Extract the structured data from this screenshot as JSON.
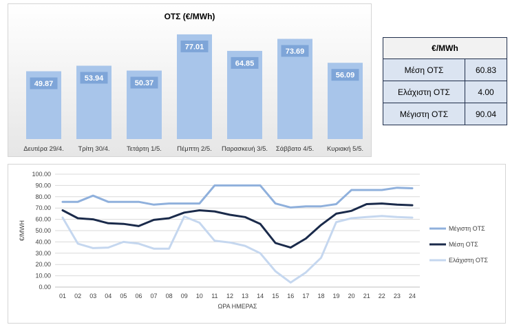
{
  "chart_data": [
    {
      "type": "bar",
      "title": "ΟΤΣ (€/MWh)",
      "categories": [
        "Δευτέρα 29/4.",
        "Τρίτη 30/4.",
        "Τετάρτη 1/5.",
        "Πέμπτη 2/5.",
        "Παρασκευή 3/5.",
        "Σάββατο 4/5.",
        "Κυριακή 5/5."
      ],
      "values": [
        49.87,
        53.94,
        50.37,
        77.01,
        64.85,
        73.69,
        56.09
      ],
      "data_labels": [
        "49.87",
        "53.94",
        "50.37",
        "77.01",
        "64.85",
        "73.69",
        "56.09"
      ],
      "bar_color": "#a8c5ea",
      "ylim": [
        0,
        80
      ]
    },
    {
      "type": "line",
      "title": "",
      "xlabel": "ΩΡΑ ΗΜΕΡΑΣ",
      "ylabel": "€/MWH",
      "ylim": [
        0,
        100
      ],
      "grid": true,
      "legend_position": "right",
      "x": [
        "01",
        "02",
        "03",
        "04",
        "05",
        "06",
        "07",
        "08",
        "09",
        "10",
        "11",
        "12",
        "13",
        "14",
        "15",
        "16",
        "17",
        "18",
        "19",
        "20",
        "21",
        "22",
        "23",
        "24"
      ],
      "y_ticks": [
        "0.00",
        "10.00",
        "20.00",
        "30.00",
        "40.00",
        "50.00",
        "60.00",
        "70.00",
        "80.00",
        "90.00",
        "100.00"
      ],
      "series": [
        {
          "name": "Μέγιστη ΟΤΣ",
          "color": "#8fb0dc",
          "values": [
            75.5,
            75.5,
            81,
            75.5,
            75.5,
            75.5,
            73,
            74,
            74,
            74,
            90,
            90,
            90,
            90,
            74,
            70.5,
            71.5,
            71.5,
            73.5,
            86,
            86,
            86,
            88,
            87.5
          ]
        },
        {
          "name": "Μέση ΟΤΣ",
          "color": "#1a2a4a",
          "values": [
            68,
            61,
            60,
            56.5,
            56,
            54,
            59.5,
            61,
            66,
            68,
            67,
            64,
            62,
            56,
            39,
            35,
            43,
            55,
            65,
            67.5,
            73.5,
            74,
            73,
            72.5
          ]
        },
        {
          "name": "Ελάχιστη ΟΤΣ",
          "color": "#c5d7ef",
          "values": [
            61.5,
            38.5,
            34.5,
            35,
            40,
            38.5,
            34,
            34,
            62.5,
            57,
            41,
            39.5,
            36.5,
            30,
            14,
            4,
            13,
            26,
            57.5,
            61,
            62,
            63,
            62,
            61.5
          ]
        }
      ]
    }
  ],
  "stats_table": {
    "header": "€/MWh",
    "rows": [
      {
        "label": "Μέση ΟΤΣ",
        "value": "60.83"
      },
      {
        "label": "Ελάχιστη ΟΤΣ",
        "value": "4.00"
      },
      {
        "label": "Μέγιστη ΟΤΣ",
        "value": "90.04"
      }
    ]
  }
}
